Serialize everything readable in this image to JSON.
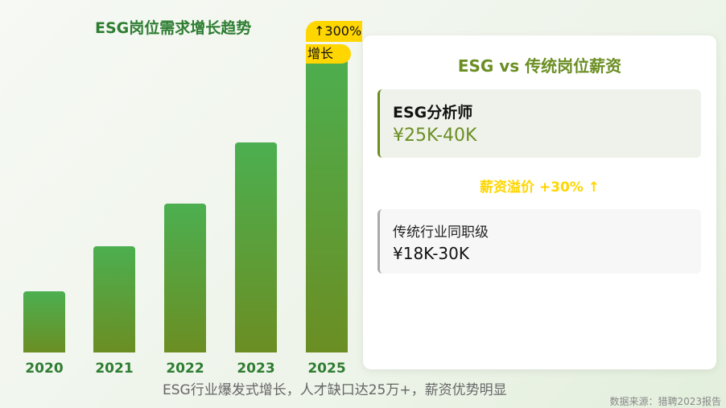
{
  "chart_data": {
    "type": "bar",
    "title": "ESG岗位需求增长趋势",
    "categories": [
      "2020",
      "2021",
      "2022",
      "2023",
      "2025"
    ],
    "values": [
      20,
      35,
      49,
      69,
      100
    ],
    "value_units": "relative bar height (no axis printed)",
    "annotation": {
      "line1": "↑300%",
      "line2": "增长"
    },
    "colors": {
      "bar_top": "#4caf50",
      "bar_bottom": "#6b8e23",
      "badge": "#ffd600"
    },
    "grid": false
  },
  "panel": {
    "title": "ESG vs 传统岗位薪资",
    "esg": {
      "role": "ESG分析师",
      "salary": "¥25K-40K"
    },
    "premium": "薪资溢价 +30% ↑",
    "traditional": {
      "role": "传统行业同职级",
      "salary": "¥18K-30K"
    }
  },
  "footer": "ESG行业爆发式增长，人才缺口达25万+，薪资优势明显",
  "source": "数据来源：猎聘2023报告"
}
